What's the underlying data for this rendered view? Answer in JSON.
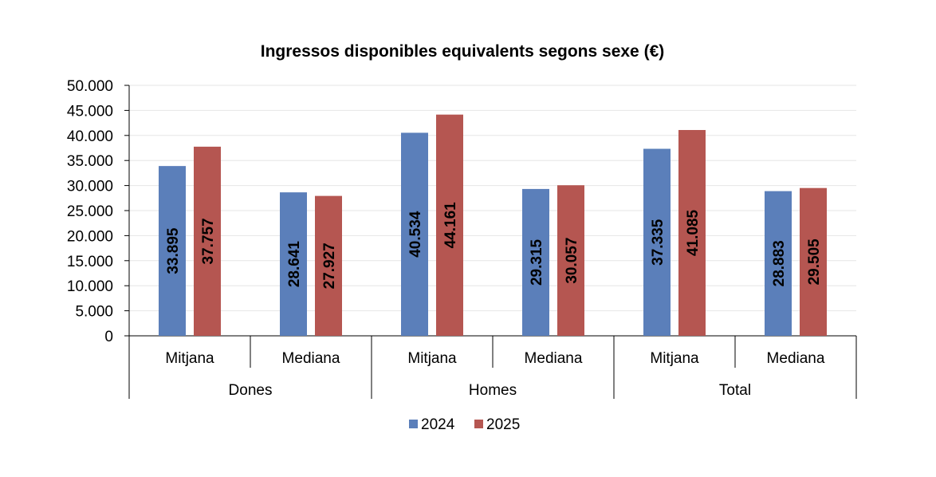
{
  "chart_data": {
    "type": "bar",
    "title": "Ingressos  disponibles equivalents segons sexe (€)",
    "xlabel": "",
    "ylabel": "",
    "ylim": [
      0,
      50000
    ],
    "y_ticks": [
      "0",
      "5.000",
      "10.000",
      "15.000",
      "20.000",
      "25.000",
      "30.000",
      "35.000",
      "40.000",
      "45.000",
      "50.000"
    ],
    "groups": [
      "Dones",
      "Homes",
      "Total"
    ],
    "categories": [
      "Mitjana",
      "Mediana",
      "Mitjana",
      "Mediana",
      "Mitjana",
      "Mediana"
    ],
    "series": [
      {
        "name": "2024",
        "color": "#5b7fba",
        "values": [
          33895,
          28641,
          40534,
          29315,
          37335,
          28883
        ],
        "labels": [
          "33.895",
          "28.641",
          "40.534",
          "29.315",
          "37.335",
          "28.883"
        ]
      },
      {
        "name": "2025",
        "color": "#b55651",
        "values": [
          37757,
          27927,
          44161,
          30057,
          41085,
          29505
        ],
        "labels": [
          "37.757",
          "27.927",
          "44.161",
          "30.057",
          "41.085",
          "29.505"
        ]
      }
    ],
    "grid": true,
    "legend_position": "bottom"
  }
}
